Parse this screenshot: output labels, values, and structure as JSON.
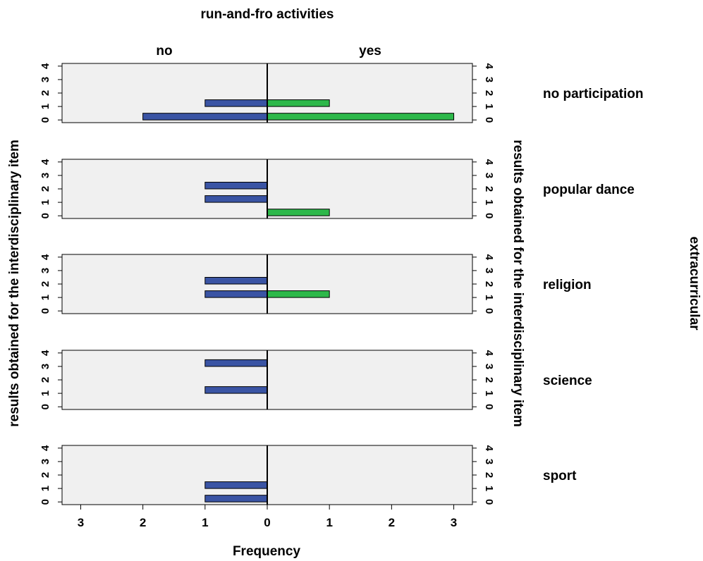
{
  "chart_data": {
    "type": "bar",
    "title": "run-and-fro activities",
    "xlabel": "Frequency",
    "ylabel": "results obtained for the interdisciplinary item",
    "ylabel_right": "results obtained for the interdisciplinary item",
    "row_variable": "extracurricular",
    "columns": [
      "no",
      "yes"
    ],
    "rows": [
      "no participation",
      "popular dance",
      "religion",
      "science",
      "sport"
    ],
    "y_ticks": [
      0,
      1,
      2,
      3,
      4
    ],
    "x_ticks_left": [
      3,
      2,
      1,
      0
    ],
    "x_ticks_right": [
      0,
      1,
      2,
      3
    ],
    "xlim": [
      0,
      3.3
    ],
    "ylim": [
      -0.2,
      4.2
    ],
    "colors": {
      "no": "#3a54a4",
      "yes": "#2db84a",
      "panel": "#f0f0f0"
    },
    "panels": [
      {
        "row": "no participation",
        "no": {
          "y": [
            0,
            1
          ],
          "values": [
            2,
            1
          ]
        },
        "yes": {
          "y": [
            0,
            1
          ],
          "values": [
            3,
            1
          ]
        }
      },
      {
        "row": "popular dance",
        "no": {
          "y": [
            1,
            2
          ],
          "values": [
            1,
            1
          ]
        },
        "yes": {
          "y": [
            0
          ],
          "values": [
            1
          ]
        }
      },
      {
        "row": "religion",
        "no": {
          "y": [
            1,
            2
          ],
          "values": [
            1,
            1
          ]
        },
        "yes": {
          "y": [
            1
          ],
          "values": [
            1
          ]
        }
      },
      {
        "row": "science",
        "no": {
          "y": [
            1,
            3
          ],
          "values": [
            1,
            1
          ]
        },
        "yes": {
          "y": [],
          "values": []
        }
      },
      {
        "row": "sport",
        "no": {
          "y": [
            0,
            1
          ],
          "values": [
            1,
            1
          ]
        },
        "yes": {
          "y": [],
          "values": []
        }
      }
    ]
  }
}
